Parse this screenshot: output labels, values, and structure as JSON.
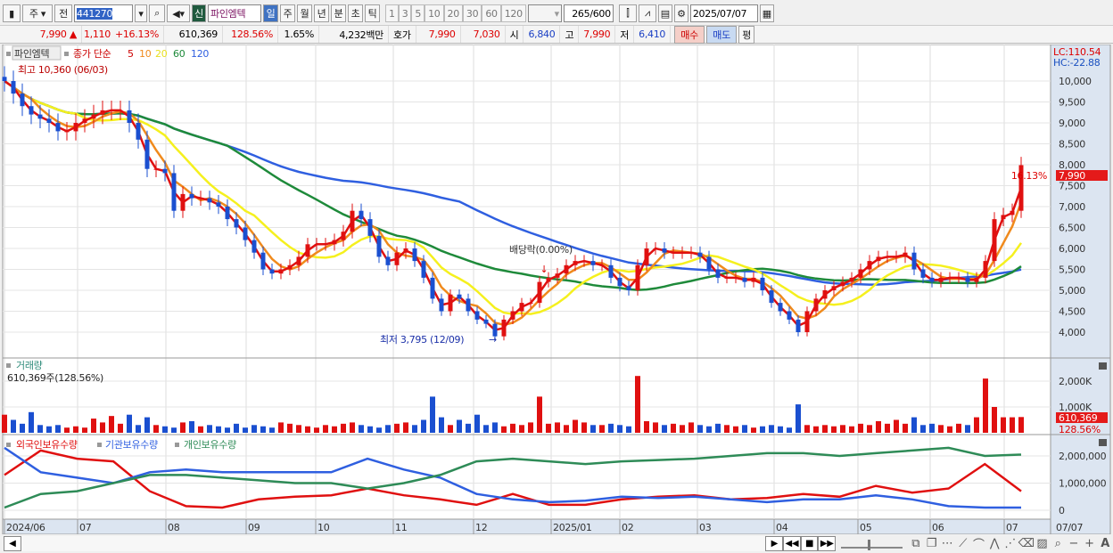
{
  "toolbar": {
    "market": "주",
    "prev": "전",
    "code": "441270",
    "stock_badge": "신",
    "stock_name": "파인엠텍",
    "periods": [
      "일",
      "주",
      "월",
      "년",
      "분",
      "초",
      "틱"
    ],
    "numbers": [
      "1",
      "3",
      "5",
      "10",
      "20",
      "30",
      "60",
      "120"
    ],
    "count": "265",
    "count_max": "/600",
    "date": "2025/07/07"
  },
  "quote": {
    "price": "7,990",
    "arrow": "▲",
    "change": "1,110",
    "change_pct": "+16.13%",
    "volume": "610,369",
    "volume_ratio": "128.56%",
    "turnover": "1.65%",
    "amount": "4,232백만",
    "bid_label": "호가",
    "ask": "7,990",
    "bid": "7,030",
    "open_label": "시",
    "open": "6,840",
    "high_label": "고",
    "high": "7,990",
    "low_label": "저",
    "low": "6,410",
    "buy": "매수",
    "sell": "매도",
    "flat": "평"
  },
  "price_panel": {
    "legend_name": "파인엠텍",
    "legend_ma": "종가 단순",
    "ma_periods": [
      "5",
      "10",
      "20",
      "60",
      "120"
    ],
    "ma_colors": [
      "#e01010",
      "#f08a1c",
      "#f5f01e",
      "#1e8a3a",
      "#2f5fe0"
    ],
    "high_note": "최고 10,360 (06/03)",
    "low_note": "최저 3,795 (12/09)",
    "dividend_note": "배당락(0.00%)",
    "lc": "LC:110.54",
    "hc": "HC:-22.88",
    "last_price": "7,990",
    "last_pct": "16.13%",
    "ticks": [
      "10,000",
      "9,500",
      "9,000",
      "8,500",
      "8,000",
      "7,500",
      "7,000",
      "6,500",
      "6,000",
      "5,500",
      "5,000",
      "4,500",
      "4,000"
    ]
  },
  "volume_panel": {
    "title": "거래량",
    "summary": "610,369주(128.56%)",
    "ticks": [
      "2,000K",
      "1,000K"
    ],
    "last": "610,369",
    "last_pct": "128.56%"
  },
  "holding_panel": {
    "series_names": [
      "외국인보유수량",
      "기관보유수량",
      "개인보유수량"
    ],
    "colors": [
      "#e01010",
      "#2f5fe0",
      "#2e8b57"
    ],
    "ticks": [
      "2,000,000",
      "1,000,000",
      "0"
    ]
  },
  "x_axis": {
    "labels": [
      "2024/06",
      "07",
      "08",
      "09",
      "10",
      "11",
      "12",
      "2025/01",
      "02",
      "03",
      "04",
      "05",
      "06",
      "07"
    ],
    "last_date": "07/07"
  },
  "chart_data": [
    {
      "type": "candlestick",
      "title": "파인엠텍",
      "ylim": [
        3500,
        10500
      ],
      "closes": [
        10000,
        9700,
        9400,
        9200,
        9100,
        9000,
        8800,
        8800,
        9000,
        9100,
        9200,
        9300,
        9300,
        9300,
        9000,
        8600,
        7900,
        7900,
        7800,
        6900,
        7300,
        7200,
        7200,
        7100,
        7000,
        6700,
        6500,
        6200,
        5900,
        5500,
        5400,
        5500,
        5600,
        5800,
        6100,
        6100,
        6100,
        6200,
        6400,
        6900,
        6700,
        6300,
        5800,
        5600,
        5900,
        6000,
        5700,
        5300,
        4800,
        4500,
        4900,
        4800,
        4500,
        4300,
        4200,
        3900,
        4300,
        4500,
        4700,
        4700,
        5200,
        5300,
        5400,
        5600,
        5700,
        5700,
        5600,
        5600,
        5300,
        5100,
        5000,
        5600,
        6000,
        6000,
        5900,
        5900,
        5900,
        5900,
        5800,
        5500,
        5300,
        5300,
        5300,
        5200,
        5300,
        5000,
        4700,
        4500,
        4300,
        4000,
        4500,
        4800,
        5000,
        5100,
        5200,
        5300,
        5500,
        5700,
        5800,
        5800,
        5800,
        5900,
        5500,
        5300,
        5200,
        5300,
        5300,
        5300,
        5200,
        5300,
        5700,
        6700,
        6800,
        6900,
        7990
      ]
    },
    {
      "type": "bar",
      "title": "거래량",
      "unit": "K",
      "values": [
        700,
        500,
        350,
        800,
        300,
        250,
        300,
        200,
        250,
        200,
        550,
        400,
        650,
        350,
        700,
        300,
        600,
        300,
        250,
        200,
        400,
        450,
        250,
        300,
        250,
        200,
        350,
        200,
        300,
        250,
        200,
        400,
        350,
        300,
        250,
        200,
        300,
        250,
        350,
        400,
        300,
        250,
        200,
        300,
        350,
        400,
        300,
        500,
        1400,
        600,
        300,
        500,
        350,
        700,
        300,
        400,
        250,
        350,
        300,
        400,
        1400,
        350,
        400,
        300,
        500,
        400,
        300,
        300,
        350,
        300,
        250,
        2200,
        450,
        400,
        300,
        350,
        300,
        400,
        300,
        250,
        350,
        300,
        250,
        300,
        200,
        250,
        300,
        250,
        200,
        1100,
        300,
        250,
        300,
        250,
        300,
        250,
        350,
        300,
        450,
        350,
        500,
        350,
        600,
        300,
        350,
        300,
        250,
        350,
        300,
        600,
        2100,
        1000,
        600,
        600,
        610
      ]
    },
    {
      "type": "line",
      "title": "보유수량",
      "series": [
        {
          "name": "외국인보유수량",
          "values": [
            1300,
            2200,
            1900,
            1800,
            700,
            150,
            100,
            400,
            500,
            550,
            800,
            550,
            400,
            200,
            600,
            200,
            200,
            400,
            500,
            550,
            400,
            450,
            600,
            500,
            900,
            650,
            800,
            1700,
            700
          ]
        },
        {
          "name": "기관보유수량",
          "values": [
            2300,
            1400,
            1200,
            1000,
            1400,
            1500,
            1400,
            1400,
            1400,
            1400,
            1900,
            1500,
            1200,
            600,
            400,
            300,
            350,
            500,
            450,
            500,
            400,
            300,
            400,
            400,
            550,
            400,
            150,
            100,
            100
          ]
        },
        {
          "name": "개인보유수량",
          "values": [
            100,
            600,
            700,
            1000,
            1300,
            1300,
            1200,
            1100,
            1000,
            1000,
            800,
            1000,
            1300,
            1800,
            1900,
            1800,
            1700,
            1800,
            1850,
            1900,
            2000,
            2100,
            2100,
            2000,
            2100,
            2200,
            2300,
            2000,
            2050
          ]
        }
      ],
      "ylim": [
        0,
        2500000
      ]
    }
  ]
}
